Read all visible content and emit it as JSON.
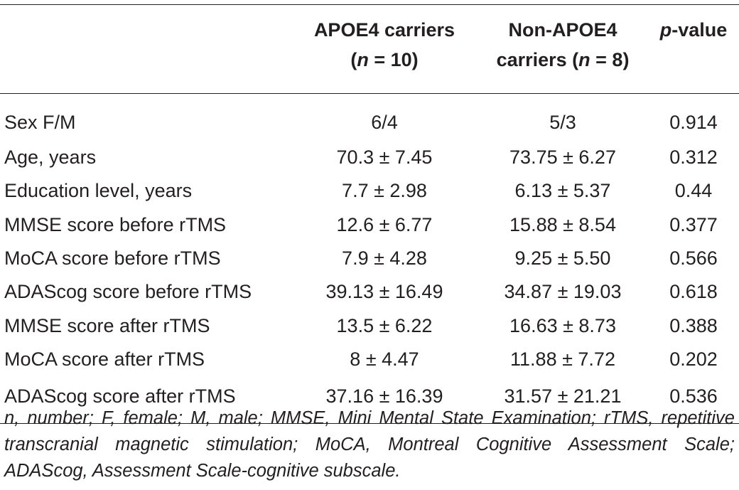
{
  "table": {
    "columns": {
      "apoe4": {
        "line1": "APOE4 carriers",
        "line2_prefix": "(",
        "line2_n": "n",
        "line2_rest": " = 10)"
      },
      "non_apoe4": {
        "line1": "Non-APOE4",
        "line2_prefix": "carriers (",
        "line2_n": "n",
        "line2_rest": " = 8)"
      },
      "pvalue": {
        "p": "p",
        "rest": "-value"
      }
    },
    "rows": [
      {
        "label": "Sex F/M",
        "apoe4": "6/4",
        "non_apoe4": "5/3",
        "p": "0.914"
      },
      {
        "label": "Age, years",
        "apoe4": "70.3 ± 7.45",
        "non_apoe4": "73.75 ± 6.27",
        "p": "0.312"
      },
      {
        "label": "Education level, years",
        "apoe4": "7.7 ± 2.98",
        "non_apoe4": "6.13 ± 5.37",
        "p": "0.44"
      },
      {
        "label": "MMSE score before rTMS",
        "apoe4": "12.6 ± 6.77",
        "non_apoe4": "15.88 ± 8.54",
        "p": "0.377"
      },
      {
        "label": "MoCA score before rTMS",
        "apoe4": "7.9 ± 4.28",
        "non_apoe4": "9.25 ± 5.50",
        "p": "0.566"
      },
      {
        "label": "ADAScog score before rTMS",
        "apoe4": "39.13 ± 16.49",
        "non_apoe4": "34.87 ± 19.03",
        "p": "0.618"
      },
      {
        "label": "MMSE score after rTMS",
        "apoe4": "13.5 ± 6.22",
        "non_apoe4": "16.63 ± 8.73",
        "p": "0.388"
      },
      {
        "label": "MoCA score after rTMS",
        "apoe4": "8 ± 4.47",
        "non_apoe4": "11.88 ± 7.72",
        "p": "0.202"
      },
      {
        "label": "ADAScog score after rTMS",
        "apoe4": "37.16 ± 16.39",
        "non_apoe4": "31.57 ± 21.21",
        "p": "0.536"
      }
    ]
  },
  "footnote": "n, number; F, female; M, male; MMSE, Mini Mental State Examination; rTMS, repetitive transcranial magnetic stimulation; MoCA, Montreal Cognitive Assessment Scale; ADAScog, Assessment Scale-cognitive subscale."
}
